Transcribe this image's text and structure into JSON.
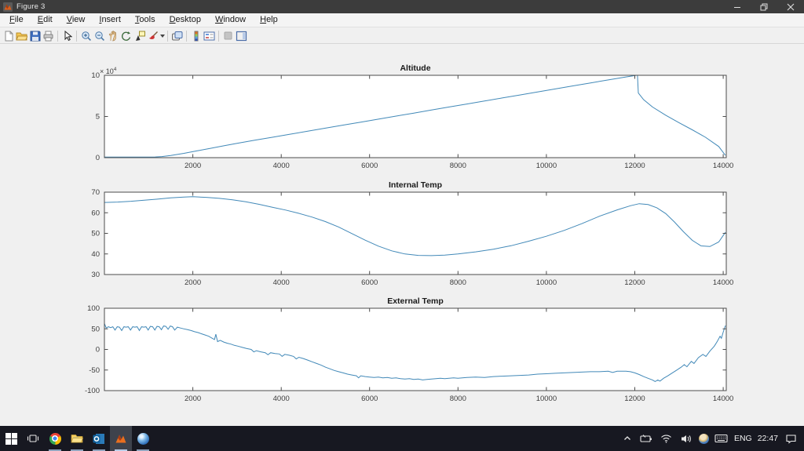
{
  "window": {
    "title": "Figure 3",
    "controls": {
      "minimize": "minimize",
      "restore": "restore",
      "close": "close"
    }
  },
  "menu": {
    "items": [
      "File",
      "Edit",
      "View",
      "Insert",
      "Tools",
      "Desktop",
      "Window",
      "Help"
    ]
  },
  "toolbar": {
    "icons": [
      "new-figure-icon",
      "open-file-icon",
      "save-figure-icon",
      "print-icon",
      "edit-arrow-icon",
      "zoom-in-icon",
      "zoom-out-icon",
      "pan-hand-icon",
      "rotate-3d-icon",
      "data-cursor-icon",
      "brush-icon",
      "link-plot-icon",
      "insert-colorbar-icon",
      "insert-legend-icon",
      "hide-plot-tools-icon",
      "show-plot-tools-icon"
    ]
  },
  "colors": {
    "line": "#4289b8",
    "axis": "#4d4d4d",
    "tick_text": "#3c3c3c",
    "figure_bg": "#f0f0f0"
  },
  "chart_data": [
    {
      "type": "line",
      "title": "Altitude",
      "xlim": [
        0,
        14070
      ],
      "ylim": [
        0,
        100000
      ],
      "xticks": [
        2000,
        4000,
        6000,
        8000,
        10000,
        12000,
        14000
      ],
      "yticks": [
        0,
        50000,
        100000
      ],
      "ytick_labels": [
        "0",
        "5",
        "10"
      ],
      "y_exponent": {
        "base": "× 10",
        "sup": "4"
      },
      "line_color": "#4289b8",
      "grid": false,
      "legend": null,
      "points": [
        [
          0,
          800
        ],
        [
          300,
          800
        ],
        [
          600,
          800
        ],
        [
          900,
          800
        ],
        [
          1150,
          850
        ],
        [
          1300,
          1300
        ],
        [
          1500,
          2600
        ],
        [
          1800,
          5200
        ],
        [
          2100,
          8300
        ],
        [
          2400,
          11300
        ],
        [
          2700,
          14400
        ],
        [
          3000,
          17400
        ],
        [
          3400,
          21100
        ],
        [
          3800,
          24800
        ],
        [
          4200,
          28500
        ],
        [
          4600,
          32100
        ],
        [
          5000,
          35800
        ],
        [
          5400,
          39500
        ],
        [
          5800,
          43100
        ],
        [
          6200,
          46800
        ],
        [
          6600,
          50500
        ],
        [
          7000,
          54100
        ],
        [
          7400,
          57800
        ],
        [
          7800,
          61500
        ],
        [
          8200,
          65100
        ],
        [
          8600,
          68800
        ],
        [
          9000,
          72500
        ],
        [
          9400,
          76100
        ],
        [
          9800,
          79800
        ],
        [
          10200,
          83400
        ],
        [
          10600,
          87100
        ],
        [
          11000,
          90800
        ],
        [
          11400,
          94400
        ],
        [
          11800,
          98000
        ],
        [
          12040,
          100000
        ],
        [
          12060,
          100000
        ],
        [
          12080,
          78500
        ],
        [
          12200,
          70500
        ],
        [
          12400,
          61500
        ],
        [
          12700,
          51500
        ],
        [
          13000,
          42500
        ],
        [
          13300,
          33800
        ],
        [
          13600,
          24800
        ],
        [
          13900,
          13500
        ],
        [
          14050,
          2800
        ]
      ]
    },
    {
      "type": "line",
      "title": "Internal Temp",
      "xlim": [
        0,
        14070
      ],
      "ylim": [
        30,
        70
      ],
      "xticks": [
        2000,
        4000,
        6000,
        8000,
        10000,
        12000,
        14000
      ],
      "yticks": [
        30,
        40,
        50,
        60,
        70
      ],
      "ytick_labels": [
        "30",
        "40",
        "50",
        "60",
        "70"
      ],
      "y_exponent": null,
      "line_color": "#4289b8",
      "grid": false,
      "legend": null,
      "points": [
        [
          0,
          65
        ],
        [
          300,
          65.2
        ],
        [
          600,
          65.6
        ],
        [
          900,
          66.1
        ],
        [
          1200,
          66.6
        ],
        [
          1500,
          67.2
        ],
        [
          1800,
          67.6
        ],
        [
          2000,
          67.8
        ],
        [
          2300,
          67.5
        ],
        [
          2600,
          67
        ],
        [
          2900,
          66.3
        ],
        [
          3200,
          65.3
        ],
        [
          3500,
          64.1
        ],
        [
          3800,
          62.7
        ],
        [
          4100,
          61.3
        ],
        [
          4400,
          59.7
        ],
        [
          4700,
          57.9
        ],
        [
          5000,
          55.7
        ],
        [
          5300,
          53.1
        ],
        [
          5600,
          49.9
        ],
        [
          5900,
          46.7
        ],
        [
          6200,
          43.8
        ],
        [
          6500,
          41.5
        ],
        [
          6800,
          40
        ],
        [
          7100,
          39.3
        ],
        [
          7400,
          39.2
        ],
        [
          7700,
          39.4
        ],
        [
          8000,
          40
        ],
        [
          8400,
          41
        ],
        [
          8800,
          42.3
        ],
        [
          9200,
          44
        ],
        [
          9600,
          46.2
        ],
        [
          10000,
          48.6
        ],
        [
          10400,
          51.4
        ],
        [
          10800,
          54.7
        ],
        [
          11200,
          58.3
        ],
        [
          11600,
          61.4
        ],
        [
          11900,
          63.4
        ],
        [
          12100,
          64.4
        ],
        [
          12300,
          64
        ],
        [
          12500,
          62.4
        ],
        [
          12700,
          59.6
        ],
        [
          12900,
          55.5
        ],
        [
          13100,
          50.8
        ],
        [
          13300,
          46.6
        ],
        [
          13500,
          43.9
        ],
        [
          13700,
          43.6
        ],
        [
          13900,
          45.8
        ],
        [
          14050,
          50.5
        ]
      ]
    },
    {
      "type": "line",
      "title": "External Temp",
      "xlim": [
        0,
        14070
      ],
      "ylim": [
        -100,
        100
      ],
      "xticks": [
        2000,
        4000,
        6000,
        8000,
        10000,
        12000,
        14000
      ],
      "yticks": [
        -100,
        -50,
        0,
        50,
        100
      ],
      "ytick_labels": [
        "-100",
        "-50",
        "0",
        "50",
        "100"
      ],
      "y_exponent": null,
      "line_color": "#4289b8",
      "grid": false,
      "legend": null,
      "points": [
        [
          0,
          63
        ],
        [
          40,
          52
        ],
        [
          90,
          55
        ],
        [
          140,
          53
        ],
        [
          190,
          55
        ],
        [
          240,
          47
        ],
        [
          290,
          55
        ],
        [
          340,
          54
        ],
        [
          390,
          46
        ],
        [
          440,
          55
        ],
        [
          490,
          54
        ],
        [
          540,
          55
        ],
        [
          590,
          47
        ],
        [
          640,
          55
        ],
        [
          690,
          54
        ],
        [
          740,
          55
        ],
        [
          790,
          46
        ],
        [
          840,
          55
        ],
        [
          890,
          54
        ],
        [
          940,
          55
        ],
        [
          990,
          47
        ],
        [
          1040,
          56
        ],
        [
          1090,
          55
        ],
        [
          1140,
          47
        ],
        [
          1190,
          56
        ],
        [
          1240,
          55
        ],
        [
          1290,
          48
        ],
        [
          1340,
          57
        ],
        [
          1390,
          56
        ],
        [
          1440,
          49
        ],
        [
          1490,
          57
        ],
        [
          1540,
          55
        ],
        [
          1590,
          47
        ],
        [
          1650,
          54
        ],
        [
          1720,
          52
        ],
        [
          1800,
          50
        ],
        [
          1880,
          48
        ],
        [
          1960,
          46
        ],
        [
          2040,
          43
        ],
        [
          2120,
          41
        ],
        [
          2200,
          38
        ],
        [
          2280,
          35
        ],
        [
          2360,
          32
        ],
        [
          2440,
          27
        ],
        [
          2490,
          24
        ],
        [
          2520,
          37
        ],
        [
          2560,
          19
        ],
        [
          2620,
          22
        ],
        [
          2700,
          18
        ],
        [
          2780,
          15
        ],
        [
          2860,
          13
        ],
        [
          2940,
          10
        ],
        [
          3020,
          8
        ],
        [
          3120,
          5
        ],
        [
          3220,
          2
        ],
        [
          3320,
          0
        ],
        [
          3380,
          -6
        ],
        [
          3440,
          -3
        ],
        [
          3540,
          -6
        ],
        [
          3640,
          -8
        ],
        [
          3700,
          -13
        ],
        [
          3760,
          -8
        ],
        [
          3860,
          -10
        ],
        [
          3960,
          -11
        ],
        [
          4020,
          -17
        ],
        [
          4080,
          -12
        ],
        [
          4180,
          -14
        ],
        [
          4280,
          -17
        ],
        [
          4340,
          -23
        ],
        [
          4400,
          -19
        ],
        [
          4500,
          -22
        ],
        [
          4600,
          -26
        ],
        [
          4700,
          -30
        ],
        [
          4800,
          -34
        ],
        [
          4900,
          -38
        ],
        [
          5000,
          -43
        ],
        [
          5100,
          -47
        ],
        [
          5200,
          -51
        ],
        [
          5300,
          -54
        ],
        [
          5400,
          -57
        ],
        [
          5500,
          -60
        ],
        [
          5600,
          -62
        ],
        [
          5700,
          -64
        ],
        [
          5750,
          -69
        ],
        [
          5800,
          -64
        ],
        [
          5900,
          -66
        ],
        [
          6000,
          -67
        ],
        [
          6100,
          -68
        ],
        [
          6200,
          -67
        ],
        [
          6300,
          -69
        ],
        [
          6400,
          -68
        ],
        [
          6500,
          -70
        ],
        [
          6600,
          -69
        ],
        [
          6700,
          -71
        ],
        [
          6800,
          -72
        ],
        [
          6900,
          -71
        ],
        [
          7000,
          -73
        ],
        [
          7100,
          -72
        ],
        [
          7200,
          -74
        ],
        [
          7300,
          -73
        ],
        [
          7400,
          -72
        ],
        [
          7500,
          -71
        ],
        [
          7600,
          -70
        ],
        [
          7700,
          -71
        ],
        [
          7800,
          -70
        ],
        [
          7900,
          -69
        ],
        [
          8000,
          -70
        ],
        [
          8200,
          -68
        ],
        [
          8400,
          -67
        ],
        [
          8600,
          -68
        ],
        [
          8800,
          -66
        ],
        [
          9000,
          -65
        ],
        [
          9200,
          -64
        ],
        [
          9400,
          -63
        ],
        [
          9600,
          -62
        ],
        [
          9800,
          -60
        ],
        [
          10000,
          -59
        ],
        [
          10200,
          -58
        ],
        [
          10400,
          -57
        ],
        [
          10600,
          -56
        ],
        [
          10800,
          -55
        ],
        [
          11000,
          -54
        ],
        [
          11200,
          -54
        ],
        [
          11400,
          -53
        ],
        [
          11500,
          -56
        ],
        [
          11600,
          -53
        ],
        [
          11800,
          -53
        ],
        [
          11900,
          -54
        ],
        [
          12000,
          -57
        ],
        [
          12100,
          -61
        ],
        [
          12200,
          -66
        ],
        [
          12300,
          -70
        ],
        [
          12400,
          -74
        ],
        [
          12460,
          -78
        ],
        [
          12520,
          -74
        ],
        [
          12570,
          -77
        ],
        [
          12650,
          -70
        ],
        [
          12750,
          -64
        ],
        [
          12850,
          -57
        ],
        [
          12950,
          -50
        ],
        [
          13050,
          -43
        ],
        [
          13120,
          -37
        ],
        [
          13180,
          -42
        ],
        [
          13280,
          -29
        ],
        [
          13340,
          -34
        ],
        [
          13440,
          -20
        ],
        [
          13540,
          -12
        ],
        [
          13610,
          -17
        ],
        [
          13700,
          -4
        ],
        [
          13800,
          8
        ],
        [
          13870,
          20
        ],
        [
          13930,
          32
        ],
        [
          13960,
          27
        ],
        [
          14000,
          42
        ],
        [
          14050,
          58
        ]
      ]
    }
  ],
  "taskbar": {
    "apps": [
      "start",
      "task-view",
      "chrome",
      "file-explorer",
      "outlook",
      "matlab",
      "google-earth"
    ],
    "active_app": "matlab",
    "tray": {
      "icons": [
        "chevron-up",
        "battery",
        "wifi",
        "volume",
        "tray-sphere",
        "keyboard",
        "action-center"
      ],
      "language": "ENG",
      "time": "22:47"
    }
  }
}
